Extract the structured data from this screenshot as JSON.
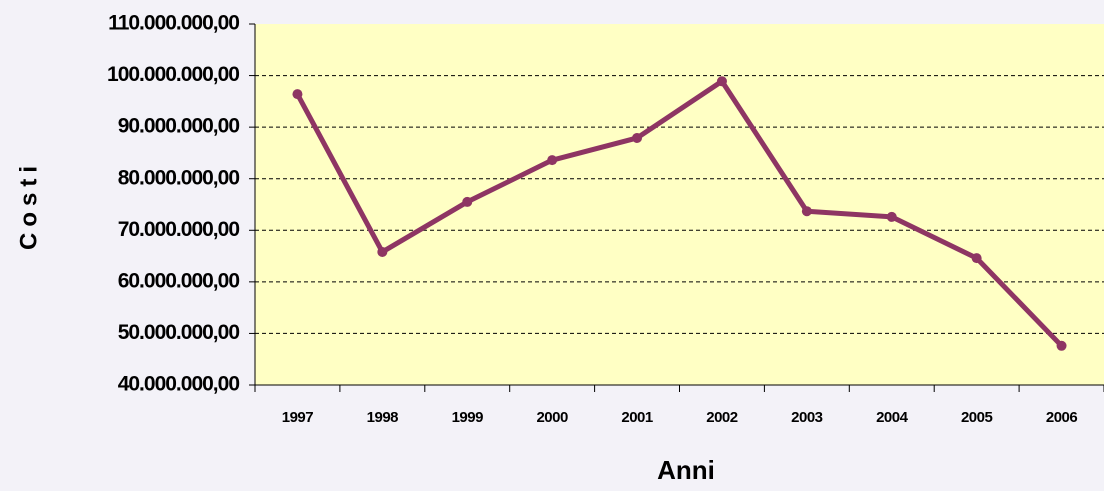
{
  "chart_data": {
    "type": "line",
    "x_label": "Anni",
    "y_label": "Costi",
    "categories": [
      "1997",
      "1998",
      "1999",
      "2000",
      "2001",
      "2002",
      "2003",
      "2004",
      "2005",
      "2006"
    ],
    "series": [
      {
        "name": "Costi",
        "color": "#8e3563",
        "values": [
          96400000,
          65800000,
          75500000,
          83600000,
          87900000,
          98900000,
          73700000,
          72600000,
          64600000,
          47600000
        ]
      }
    ],
    "ylim": [
      40000000,
      110000000
    ],
    "yticks": [
      {
        "value": 40000000,
        "label": "40.000.000,00"
      },
      {
        "value": 50000000,
        "label": "50.000.000,00"
      },
      {
        "value": 60000000,
        "label": "60.000.000,00"
      },
      {
        "value": 70000000,
        "label": "70.000.000,00"
      },
      {
        "value": 80000000,
        "label": "80.000.000,00"
      },
      {
        "value": 90000000,
        "label": "90.000.000,00"
      },
      {
        "value": 100000000,
        "label": "100.000.000,00"
      },
      {
        "value": 110000000,
        "label": "110.000.000,00"
      }
    ],
    "grid": true
  }
}
